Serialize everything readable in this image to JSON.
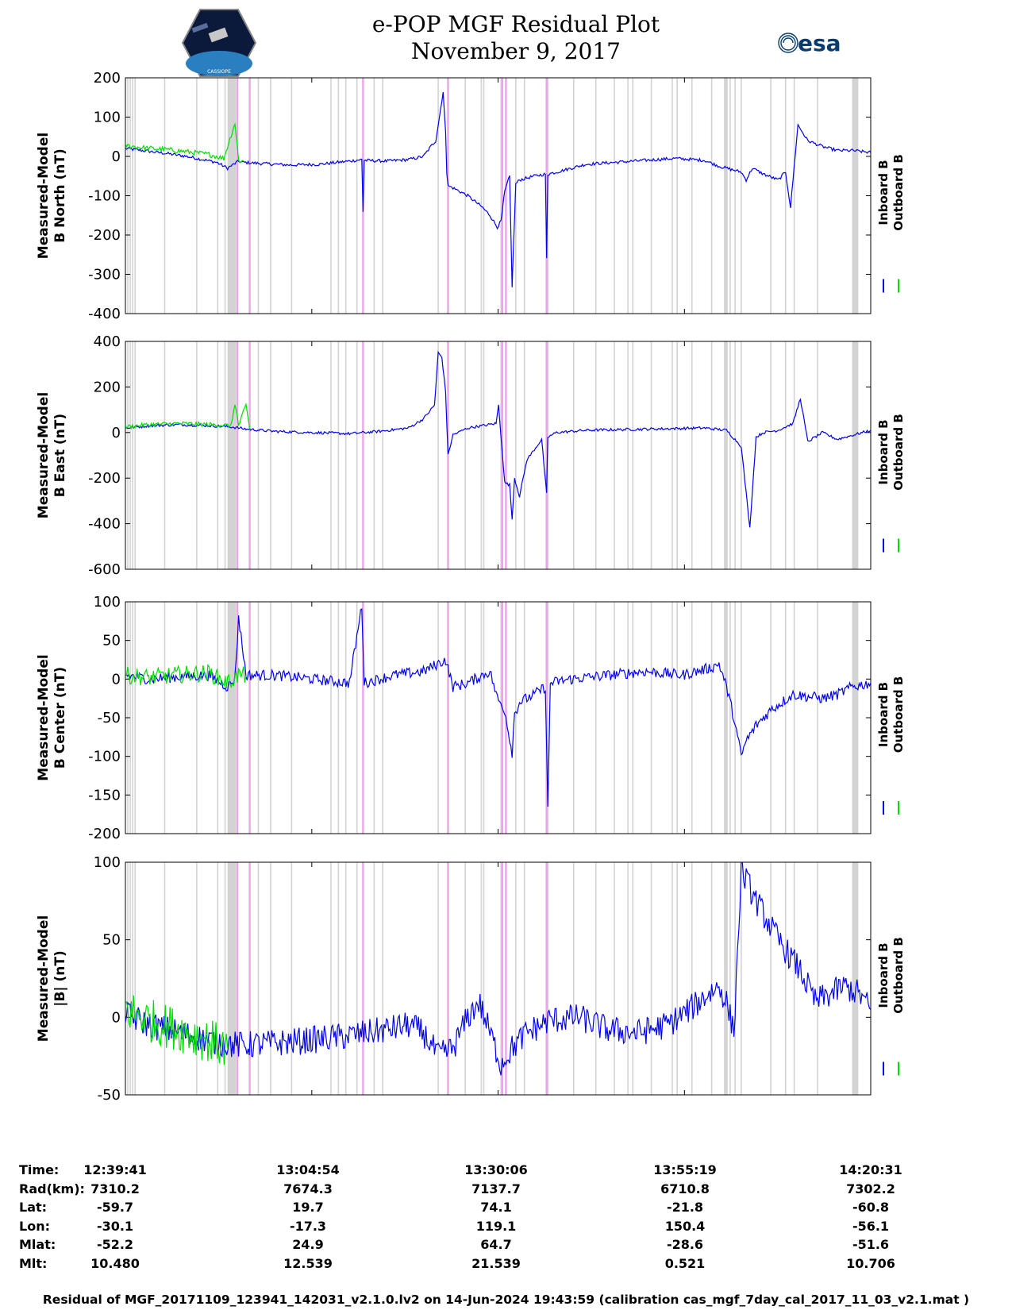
{
  "header": {
    "title_line1": "e-POP MGF Residual Plot",
    "title_line2": "November 9, 2017"
  },
  "logos": {
    "cassiope_text": "CASSIOPE",
    "esa_text": "esa"
  },
  "colors": {
    "inboard": "#0000ee",
    "outboard": "#00dd00",
    "gap_band": "#d3d3d3",
    "event_line": "#e8a6e8"
  },
  "chart_data": [
    {
      "type": "line",
      "ylabel": [
        "Measured-Model",
        "B North (nT)"
      ],
      "ylim": [
        -400,
        200
      ],
      "yticks": [
        200,
        100,
        0,
        -100,
        -200,
        -300,
        -400
      ],
      "legend": [
        "Inboard B",
        "Outboard B"
      ],
      "legend_placement": "right",
      "xlim": [
        "12:39:41",
        "14:20:31"
      ],
      "series": [
        {
          "name": "Inboard B",
          "color": "#0000ee",
          "x": [
            "12:39:41",
            "12:42:00",
            "12:45:00",
            "12:48:00",
            "12:52:00",
            "12:53:30",
            "12:55:00",
            "12:55:30",
            "12:58:00",
            "13:02:00",
            "13:06:00",
            "13:10:00",
            "13:11:40",
            "13:11:50",
            "13:12:00",
            "13:15:00",
            "13:18:00",
            "13:20:00",
            "13:21:00",
            "13:21:40",
            "13:22:10",
            "13:22:40",
            "13:23:00",
            "13:23:10",
            "13:23:20",
            "13:24:00",
            "13:26:00",
            "13:28:00",
            "13:29:00",
            "13:30:00",
            "13:30:30",
            "13:31:00",
            "13:31:40",
            "13:32:00",
            "13:32:30",
            "13:33:00",
            "13:35:00",
            "13:36:30",
            "13:36:40",
            "13:36:50",
            "13:38:00",
            "13:42:00",
            "13:46:00",
            "13:50:00",
            "13:54:00",
            "13:58:00",
            "14:00:00",
            "14:03:00",
            "14:03:40",
            "14:04:30",
            "14:06:00",
            "14:08:00",
            "14:09:00",
            "14:09:40",
            "14:10:40",
            "14:12:00",
            "14:14:00",
            "14:16:00",
            "14:18:00",
            "14:20:31"
          ],
          "y": [
            20,
            15,
            8,
            0,
            -15,
            -30,
            -12,
            -15,
            -18,
            -22,
            -20,
            -12,
            -8,
            -140,
            -10,
            -12,
            -8,
            0,
            25,
            40,
            100,
            165,
            60,
            -40,
            -75,
            -80,
            -100,
            -130,
            -150,
            -180,
            -165,
            -90,
            -50,
            -330,
            -70,
            -60,
            -50,
            -45,
            -260,
            -45,
            -40,
            -20,
            -15,
            -10,
            -5,
            -10,
            -25,
            -40,
            -60,
            -30,
            -45,
            -60,
            -40,
            -130,
            80,
            40,
            25,
            15,
            15,
            10
          ]
        },
        {
          "name": "Outboard B",
          "color": "#00dd00",
          "x": [
            "12:39:41",
            "12:42:00",
            "12:45:00",
            "12:48:00",
            "12:51:00",
            "12:53:00",
            "12:54:30",
            "12:55:00",
            "12:55:40"
          ],
          "y": [
            28,
            22,
            18,
            12,
            5,
            -5,
            85,
            -10,
            -12
          ]
        }
      ]
    },
    {
      "type": "line",
      "ylabel": [
        "Measured-Model",
        "B East (nT)"
      ],
      "ylim": [
        -600,
        400
      ],
      "yticks": [
        400,
        200,
        0,
        -200,
        -400,
        -600
      ],
      "legend": [
        "Inboard B",
        "Outboard B"
      ],
      "legend_placement": "right",
      "xlim": [
        "12:39:41",
        "14:20:31"
      ],
      "series": [
        {
          "name": "Inboard B",
          "color": "#0000ee",
          "x": [
            "12:39:41",
            "12:43:00",
            "12:47:00",
            "12:51:00",
            "12:54:00",
            "12:56:00",
            "13:00:00",
            "13:05:00",
            "13:10:00",
            "13:14:00",
            "13:18:00",
            "13:20:00",
            "13:21:30",
            "13:22:00",
            "13:22:30",
            "13:23:00",
            "13:23:20",
            "13:24:00",
            "13:26:00",
            "13:28:00",
            "13:29:50",
            "13:30:10",
            "13:31:00",
            "13:31:40",
            "13:32:00",
            "13:32:20",
            "13:33:00",
            "13:34:00",
            "13:36:00",
            "13:36:40",
            "13:36:50",
            "13:38:00",
            "13:42:00",
            "13:50:00",
            "13:58:00",
            "14:01:00",
            "14:03:00",
            "14:04:10",
            "14:05:00",
            "14:06:00",
            "14:08:00",
            "14:10:00",
            "14:11:00",
            "14:12:00",
            "14:14:00",
            "14:16:00",
            "14:20:31"
          ],
          "y": [
            20,
            30,
            35,
            30,
            25,
            15,
            5,
            0,
            -5,
            5,
            20,
            60,
            120,
            350,
            330,
            180,
            -100,
            -10,
            20,
            30,
            40,
            120,
            -220,
            -230,
            -380,
            -200,
            -280,
            -120,
            -30,
            -270,
            -20,
            0,
            10,
            15,
            20,
            10,
            -60,
            -420,
            -20,
            0,
            10,
            40,
            150,
            -40,
            0,
            -30,
            10
          ]
        },
        {
          "name": "Outboard B",
          "color": "#00dd00",
          "x": [
            "12:39:41",
            "12:43:00",
            "12:47:00",
            "12:51:00",
            "12:54:00",
            "12:54:30",
            "12:55:00",
            "12:56:00",
            "12:56:30"
          ],
          "y": [
            25,
            35,
            40,
            35,
            30,
            130,
            30,
            120,
            15
          ]
        }
      ]
    },
    {
      "type": "line",
      "ylabel": [
        "Measured-Model",
        "B Center (nT)"
      ],
      "ylim": [
        -200,
        100
      ],
      "yticks": [
        100,
        50,
        0,
        -50,
        -100,
        -150,
        -200
      ],
      "legend": [
        "Inboard B",
        "Outboard B"
      ],
      "legend_placement": "right",
      "xlim": [
        "12:39:41",
        "14:20:31"
      ],
      "series": [
        {
          "name": "Inboard B",
          "color": "#0000ee",
          "x": [
            "12:39:41",
            "12:43:00",
            "12:47:00",
            "12:51:00",
            "12:53:30",
            "12:54:30",
            "12:55:00",
            "12:56:00",
            "13:00:00",
            "13:05:00",
            "13:10:00",
            "13:11:40",
            "13:12:00",
            "13:16:00",
            "13:20:00",
            "13:23:00",
            "13:24:00",
            "13:26:00",
            "13:29:00",
            "13:30:00",
            "13:31:00",
            "13:32:00",
            "13:32:20",
            "13:33:00",
            "13:35:00",
            "13:36:30",
            "13:36:50",
            "13:37:10",
            "13:40:00",
            "13:45:00",
            "13:50:00",
            "13:55:00",
            "13:59:00",
            "14:00:00",
            "14:01:00",
            "14:02:00",
            "14:03:00",
            "14:03:40",
            "14:05:00",
            "14:07:00",
            "14:10:00",
            "14:14:00",
            "14:16:00",
            "14:18:00",
            "14:20:31"
          ],
          "y": [
            5,
            0,
            3,
            5,
            -10,
            0,
            80,
            5,
            5,
            0,
            -5,
            95,
            -5,
            5,
            10,
            25,
            -10,
            -5,
            10,
            -25,
            -40,
            -95,
            -45,
            -30,
            -20,
            -10,
            -170,
            -5,
            0,
            5,
            10,
            5,
            15,
            20,
            -10,
            -50,
            -100,
            -80,
            -60,
            -40,
            -20,
            -25,
            -20,
            -10,
            -5
          ]
        },
        {
          "name": "Outboard B",
          "color": "#00dd00",
          "x": [
            "12:39:41",
            "12:43:00",
            "12:47:00",
            "12:51:00",
            "12:53:30",
            "12:55:00",
            "12:56:00"
          ],
          "y": [
            5,
            2,
            6,
            8,
            -5,
            5,
            5
          ]
        }
      ]
    },
    {
      "type": "line",
      "ylabel": [
        "Measured-Model",
        "|B| (nT)"
      ],
      "ylim": [
        -50,
        100
      ],
      "yticks": [
        100,
        50,
        0,
        -50
      ],
      "legend": [
        "Inboard B",
        "Outboard B"
      ],
      "legend_placement": "right",
      "xlim": [
        "12:39:41",
        "14:20:31"
      ],
      "series": [
        {
          "name": "Inboard B",
          "color": "#0000ee",
          "x": [
            "12:39:41",
            "12:43:00",
            "12:47:00",
            "12:51:00",
            "12:55:00",
            "12:59:00",
            "13:04:00",
            "13:10:00",
            "13:15:00",
            "13:18:00",
            "13:20:00",
            "13:22:00",
            "13:24:00",
            "13:26:00",
            "13:27:30",
            "13:29:00",
            "13:30:30",
            "13:32:00",
            "13:34:00",
            "13:37:00",
            "13:41:00",
            "13:45:00",
            "13:49:00",
            "13:53:00",
            "13:56:00",
            "13:58:30",
            "14:00:00",
            "14:01:00",
            "14:02:00",
            "14:03:00",
            "14:05:00",
            "14:08:00",
            "14:11:00",
            "14:13:00",
            "14:15:00",
            "14:17:00",
            "14:19:00",
            "14:20:31"
          ],
          "y": [
            2,
            -5,
            -10,
            -15,
            -18,
            -17,
            -15,
            -12,
            -8,
            -5,
            -10,
            -25,
            -20,
            0,
            10,
            -10,
            -30,
            -20,
            -10,
            -2,
            0,
            -8,
            -10,
            -5,
            5,
            15,
            20,
            10,
            -10,
            95,
            75,
            50,
            30,
            10,
            15,
            20,
            15,
            5
          ]
        },
        {
          "name": "Outboard B",
          "color": "#00dd00",
          "x": [
            "12:39:41",
            "12:43:00",
            "12:47:00",
            "12:51:00",
            "12:53:30"
          ],
          "y": [
            5,
            -2,
            -8,
            -15,
            -20
          ]
        }
      ]
    }
  ],
  "shading": {
    "gray_bands": [
      "12:53:30-12:54:40",
      "14:18:00-14:18:50",
      "14:00:40-14:01:10"
    ],
    "gray_lines": [
      "12:40:00",
      "12:40:20",
      "12:40:40",
      "12:41:00",
      "12:45:00",
      "12:49:20",
      "12:52:10",
      "12:53:10",
      "12:53:50",
      "12:54:30",
      "12:57:40",
      "12:59:20",
      "13:02:10",
      "13:07:30",
      "13:08:30",
      "13:09:30",
      "13:11:00",
      "13:13:20",
      "13:14:30",
      "13:22:00",
      "13:25:40",
      "13:27:50",
      "13:28:10",
      "13:30:30",
      "13:32:30",
      "13:33:40",
      "13:36:50",
      "13:40:20",
      "13:43:20",
      "13:45:50",
      "13:47:40",
      "13:48:20",
      "13:50:50",
      "13:53:40",
      "13:54:20",
      "13:56:20",
      "13:59:00",
      "14:01:30",
      "14:02:10",
      "14:03:00",
      "14:07:00",
      "14:09:00",
      "14:10:10",
      "14:13:20"
    ],
    "event_lines": [
      "12:54:50",
      "12:56:30",
      "13:11:50",
      "13:23:20",
      "13:30:40",
      "13:31:10",
      "13:36:40"
    ]
  },
  "info_table": {
    "rows": [
      {
        "label": "Time:",
        "values": [
          "12:39:41",
          "13:04:54",
          "13:30:06",
          "13:55:19",
          "14:20:31"
        ]
      },
      {
        "label": "Rad(km):",
        "values": [
          "7310.2",
          "7674.3",
          "7137.7",
          "6710.8",
          "7302.2"
        ]
      },
      {
        "label": "Lat:",
        "values": [
          "-59.7",
          "19.7",
          "74.1",
          "-21.8",
          "-60.8"
        ]
      },
      {
        "label": "Lon:",
        "values": [
          "-30.1",
          "-17.3",
          "119.1",
          "150.4",
          "-56.1"
        ]
      },
      {
        "label": "Mlat:",
        "values": [
          "-52.2",
          "24.9",
          "64.7",
          "-28.6",
          "-51.6"
        ]
      },
      {
        "label": "Mlt:",
        "values": [
          "10.480",
          "12.539",
          "21.539",
          "0.521",
          "10.706"
        ]
      }
    ]
  },
  "footer": "Residual of MGF_20171109_123941_142031_v2.1.0.lv2 on 14-Jun-2024 19:43:59 (calibration cas_mgf_7day_cal_2017_11_03_v2.1.mat )"
}
